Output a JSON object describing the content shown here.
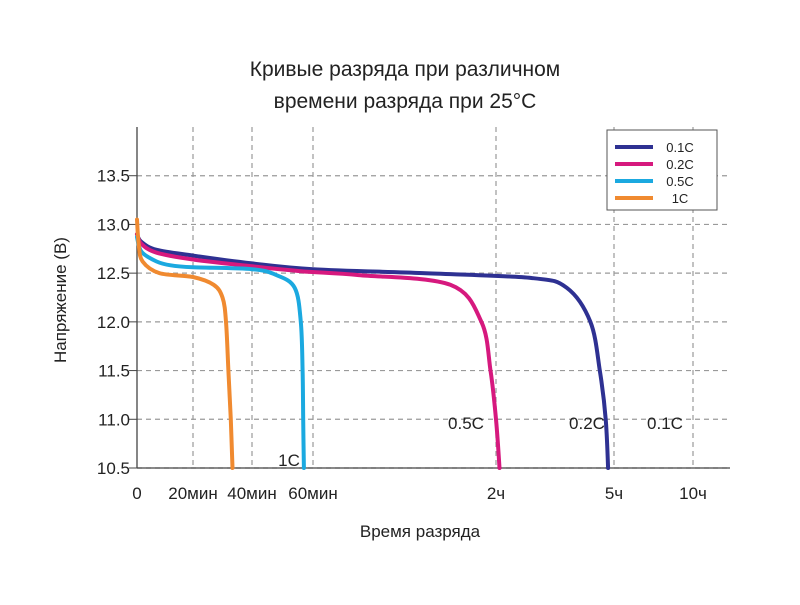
{
  "chart_data": {
    "type": "line",
    "title": [
      "Кривые разряда при различном",
      "времени разряда при 25°C"
    ],
    "xlabel": "Время разряда",
    "ylabel": "Напряжение (В)",
    "ylim": [
      10.5,
      14
    ],
    "x_ticks": [
      {
        "label": "0",
        "grid": false
      },
      {
        "label": "20мин",
        "grid": true
      },
      {
        "label": "40мин",
        "grid": true
      },
      {
        "label": "60мин",
        "grid": true
      },
      {
        "label": "2ч",
        "grid": true
      },
      {
        "label": "5ч",
        "grid": true
      },
      {
        "label": "10ч",
        "grid": true
      }
    ],
    "y_ticks": [
      10.5,
      11.0,
      11.5,
      12.0,
      12.5,
      13.0,
      13.5
    ],
    "y_tick_labels": [
      "10.5",
      "11.0",
      "11.5",
      "12.0",
      "12.5",
      "13.0",
      "13.5"
    ],
    "grid": true,
    "legend_position": "top-right",
    "series": [
      {
        "name": "0.1C",
        "label": "0.1C",
        "color": "#2e3192",
        "points": [
          [
            0,
            12.9
          ],
          [
            0.08,
            12.82
          ],
          [
            0.35,
            12.74
          ],
          [
            1.0,
            12.68
          ],
          [
            2.0,
            12.6
          ],
          [
            3.0,
            12.54
          ],
          [
            3.6,
            12.5
          ],
          [
            4.3,
            12.45
          ],
          [
            4.6,
            12.35
          ],
          [
            4.8,
            12.0
          ],
          [
            4.88,
            11.5
          ],
          [
            4.93,
            11.0
          ],
          [
            4.95,
            10.5
          ]
        ]
      },
      {
        "name": "0.2C",
        "label": "0.2C",
        "color": "#d6197e",
        "points": [
          [
            0,
            12.9
          ],
          [
            0.08,
            12.8
          ],
          [
            0.35,
            12.71
          ],
          [
            1.0,
            12.64
          ],
          [
            2.0,
            12.57
          ],
          [
            2.8,
            12.52
          ],
          [
            3.25,
            12.48
          ],
          [
            3.75,
            12.38
          ],
          [
            3.92,
            12.0
          ],
          [
            3.97,
            11.5
          ],
          [
            4.0,
            11.0
          ],
          [
            4.03,
            10.5
          ]
        ]
      },
      {
        "name": "0.5C",
        "label": "0.5C",
        "color": "#1ba9e0",
        "points": [
          [
            0,
            12.87
          ],
          [
            0.08,
            12.72
          ],
          [
            0.35,
            12.62
          ],
          [
            0.6,
            12.58
          ],
          [
            1.0,
            12.56
          ],
          [
            2.0,
            12.54
          ],
          [
            2.4,
            12.48
          ],
          [
            2.7,
            12.35
          ],
          [
            2.8,
            12.0
          ],
          [
            2.83,
            11.5
          ],
          [
            2.84,
            11.0
          ],
          [
            2.85,
            10.5
          ]
        ]
      },
      {
        "name": "1C",
        "label": "1C",
        "color": "#f08a30",
        "points": [
          [
            0,
            13.05
          ],
          [
            0.03,
            12.8
          ],
          [
            0.1,
            12.62
          ],
          [
            0.4,
            12.5
          ],
          [
            1.0,
            12.46
          ],
          [
            1.35,
            12.38
          ],
          [
            1.5,
            12.25
          ],
          [
            1.56,
            12.0
          ],
          [
            1.6,
            11.5
          ],
          [
            1.64,
            11.0
          ],
          [
            1.67,
            10.5
          ]
        ]
      }
    ]
  }
}
